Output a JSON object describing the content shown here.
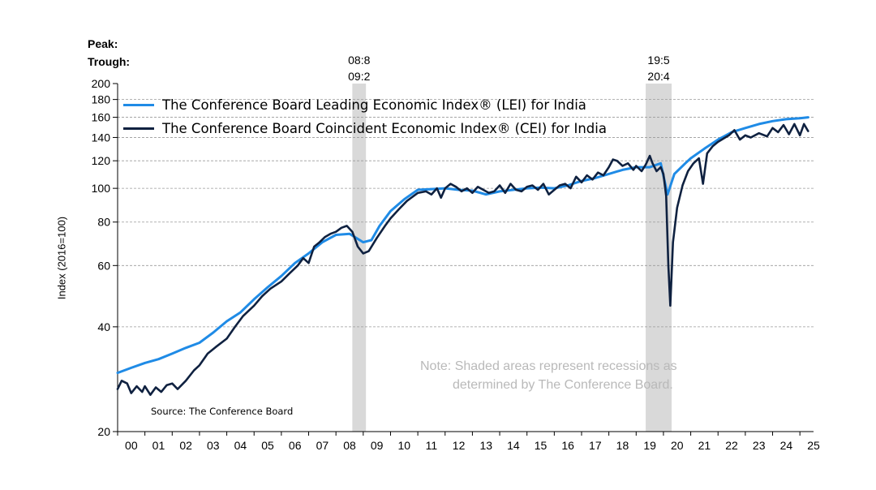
{
  "peak_label": "Peak:",
  "trough_label": "Trough:",
  "note_line1": "Note: Shaded areas represent recessions as",
  "note_line2": "determined by The Conference Board.",
  "source": "Source: The Conference Board",
  "colors": {
    "lei": "#1f8be6",
    "cei": "#0f2140",
    "recession": "#d9d9d9",
    "grid": "#9a9a9a"
  },
  "chart_data": {
    "type": "line",
    "ylabel": "Index (2016=100)",
    "yscale": "log",
    "ylim": [
      20,
      200
    ],
    "yticks": [
      20,
      40,
      60,
      80,
      100,
      120,
      140,
      160,
      180,
      200
    ],
    "xlim": [
      2000,
      2025.5
    ],
    "xticks": [
      "00",
      "01",
      "02",
      "03",
      "04",
      "05",
      "06",
      "07",
      "08",
      "09",
      "10",
      "11",
      "12",
      "13",
      "14",
      "15",
      "16",
      "17",
      "18",
      "19",
      "20",
      "21",
      "22",
      "23",
      "24",
      "25"
    ],
    "grid": "horizontal dashed",
    "legend_placement": "top-left",
    "recessions": [
      {
        "peak": "08:8",
        "trough": "09:2",
        "start": 2008.6,
        "end": 2009.1
      },
      {
        "peak": "19:5",
        "trough": "20:4",
        "start": 2019.35,
        "end": 2020.3
      }
    ],
    "series": [
      {
        "name": "The Conference Board Leading Economic Index® (LEI) for India",
        "points": [
          [
            2000.0,
            29.5
          ],
          [
            2000.5,
            30.5
          ],
          [
            2001.0,
            31.5
          ],
          [
            2001.5,
            32.3
          ],
          [
            2002.0,
            33.5
          ],
          [
            2002.5,
            34.8
          ],
          [
            2003.0,
            36.0
          ],
          [
            2003.5,
            38.5
          ],
          [
            2004.0,
            41.5
          ],
          [
            2004.5,
            44.0
          ],
          [
            2005.0,
            48.0
          ],
          [
            2005.5,
            52.0
          ],
          [
            2006.0,
            56.0
          ],
          [
            2006.5,
            61.0
          ],
          [
            2007.0,
            65.0
          ],
          [
            2007.5,
            70.0
          ],
          [
            2008.0,
            73.5
          ],
          [
            2008.5,
            74.0
          ],
          [
            2009.0,
            70.0
          ],
          [
            2009.3,
            71.0
          ],
          [
            2009.6,
            78.0
          ],
          [
            2010.0,
            86.0
          ],
          [
            2010.5,
            93.0
          ],
          [
            2011.0,
            99.0
          ],
          [
            2011.5,
            99.5
          ],
          [
            2012.0,
            100.0
          ],
          [
            2012.5,
            99.0
          ],
          [
            2013.0,
            98.5
          ],
          [
            2013.5,
            96.0
          ],
          [
            2014.0,
            98.0
          ],
          [
            2014.5,
            99.0
          ],
          [
            2015.0,
            100.0
          ],
          [
            2015.5,
            100.5
          ],
          [
            2016.0,
            100.0
          ],
          [
            2016.5,
            102.0
          ],
          [
            2017.0,
            105.0
          ],
          [
            2017.5,
            107.0
          ],
          [
            2018.0,
            110.0
          ],
          [
            2018.5,
            113.0
          ],
          [
            2019.0,
            115.0
          ],
          [
            2019.5,
            115.0
          ],
          [
            2019.9,
            118.0
          ],
          [
            2020.15,
            96.0
          ],
          [
            2020.4,
            110.0
          ],
          [
            2020.8,
            118.0
          ],
          [
            2021.0,
            122.0
          ],
          [
            2021.5,
            130.0
          ],
          [
            2022.0,
            138.0
          ],
          [
            2022.5,
            145.0
          ],
          [
            2023.0,
            149.0
          ],
          [
            2023.5,
            153.0
          ],
          [
            2024.0,
            156.0
          ],
          [
            2024.5,
            158.0
          ],
          [
            2025.0,
            159.0
          ],
          [
            2025.3,
            160.0
          ]
        ]
      },
      {
        "name": "The Conference Board Coincident Economic Index® (CEI) for India",
        "points": [
          [
            2000.0,
            26.5
          ],
          [
            2000.15,
            28.0
          ],
          [
            2000.35,
            27.5
          ],
          [
            2000.5,
            25.8
          ],
          [
            2000.7,
            27.0
          ],
          [
            2000.9,
            26.0
          ],
          [
            2001.0,
            27.0
          ],
          [
            2001.2,
            25.5
          ],
          [
            2001.4,
            26.8
          ],
          [
            2001.6,
            26.0
          ],
          [
            2001.8,
            27.2
          ],
          [
            2002.0,
            27.5
          ],
          [
            2002.2,
            26.5
          ],
          [
            2002.5,
            28.0
          ],
          [
            2002.8,
            30.0
          ],
          [
            2003.0,
            31.0
          ],
          [
            2003.3,
            33.5
          ],
          [
            2003.6,
            35.0
          ],
          [
            2004.0,
            37.0
          ],
          [
            2004.3,
            40.0
          ],
          [
            2004.6,
            43.0
          ],
          [
            2005.0,
            46.0
          ],
          [
            2005.3,
            49.0
          ],
          [
            2005.6,
            51.5
          ],
          [
            2006.0,
            54.0
          ],
          [
            2006.3,
            57.0
          ],
          [
            2006.6,
            60.0
          ],
          [
            2006.8,
            63.0
          ],
          [
            2007.0,
            61.0
          ],
          [
            2007.2,
            68.0
          ],
          [
            2007.4,
            70.0
          ],
          [
            2007.6,
            72.5
          ],
          [
            2007.8,
            74.0
          ],
          [
            2008.0,
            75.0
          ],
          [
            2008.2,
            77.0
          ],
          [
            2008.4,
            78.0
          ],
          [
            2008.6,
            75.0
          ],
          [
            2008.8,
            68.0
          ],
          [
            2009.0,
            65.0
          ],
          [
            2009.2,
            66.0
          ],
          [
            2009.5,
            72.0
          ],
          [
            2009.8,
            78.0
          ],
          [
            2010.0,
            82.0
          ],
          [
            2010.3,
            87.0
          ],
          [
            2010.6,
            92.0
          ],
          [
            2011.0,
            97.0
          ],
          [
            2011.3,
            98.0
          ],
          [
            2011.5,
            96.0
          ],
          [
            2011.7,
            100.0
          ],
          [
            2011.85,
            94.0
          ],
          [
            2012.0,
            100.0
          ],
          [
            2012.2,
            103.0
          ],
          [
            2012.4,
            101.0
          ],
          [
            2012.6,
            98.0
          ],
          [
            2012.8,
            100.0
          ],
          [
            2013.0,
            97.0
          ],
          [
            2013.2,
            101.0
          ],
          [
            2013.4,
            99.0
          ],
          [
            2013.6,
            97.0
          ],
          [
            2013.8,
            98.0
          ],
          [
            2014.0,
            102.0
          ],
          [
            2014.2,
            97.0
          ],
          [
            2014.4,
            103.0
          ],
          [
            2014.6,
            99.0
          ],
          [
            2014.8,
            98.0
          ],
          [
            2015.0,
            101.0
          ],
          [
            2015.2,
            102.0
          ],
          [
            2015.4,
            99.0
          ],
          [
            2015.6,
            103.0
          ],
          [
            2015.8,
            96.0
          ],
          [
            2016.0,
            99.0
          ],
          [
            2016.2,
            102.0
          ],
          [
            2016.4,
            103.0
          ],
          [
            2016.6,
            100.0
          ],
          [
            2016.8,
            108.0
          ],
          [
            2017.0,
            104.0
          ],
          [
            2017.2,
            109.0
          ],
          [
            2017.4,
            106.0
          ],
          [
            2017.6,
            111.0
          ],
          [
            2017.8,
            109.0
          ],
          [
            2018.0,
            115.0
          ],
          [
            2018.15,
            121.0
          ],
          [
            2018.3,
            120.0
          ],
          [
            2018.5,
            116.0
          ],
          [
            2018.7,
            118.0
          ],
          [
            2018.9,
            113.0
          ],
          [
            2019.0,
            116.0
          ],
          [
            2019.2,
            112.0
          ],
          [
            2019.35,
            117.0
          ],
          [
            2019.5,
            124.0
          ],
          [
            2019.6,
            118.0
          ],
          [
            2019.75,
            112.0
          ],
          [
            2019.9,
            115.0
          ],
          [
            2020.0,
            110.0
          ],
          [
            2020.1,
            95.0
          ],
          [
            2020.18,
            60.0
          ],
          [
            2020.25,
            46.0
          ],
          [
            2020.35,
            70.0
          ],
          [
            2020.5,
            88.0
          ],
          [
            2020.7,
            102.0
          ],
          [
            2020.9,
            112.0
          ],
          [
            2021.1,
            118.0
          ],
          [
            2021.3,
            122.0
          ],
          [
            2021.45,
            103.0
          ],
          [
            2021.6,
            126.0
          ],
          [
            2021.8,
            132.0
          ],
          [
            2022.0,
            136.0
          ],
          [
            2022.2,
            139.0
          ],
          [
            2022.4,
            142.0
          ],
          [
            2022.6,
            147.0
          ],
          [
            2022.8,
            138.0
          ],
          [
            2023.0,
            142.0
          ],
          [
            2023.2,
            140.0
          ],
          [
            2023.5,
            144.0
          ],
          [
            2023.8,
            141.0
          ],
          [
            2024.0,
            149.0
          ],
          [
            2024.2,
            145.0
          ],
          [
            2024.4,
            152.0
          ],
          [
            2024.6,
            143.0
          ],
          [
            2024.8,
            153.0
          ],
          [
            2025.0,
            142.0
          ],
          [
            2025.15,
            153.0
          ],
          [
            2025.3,
            146.0
          ]
        ]
      }
    ]
  }
}
